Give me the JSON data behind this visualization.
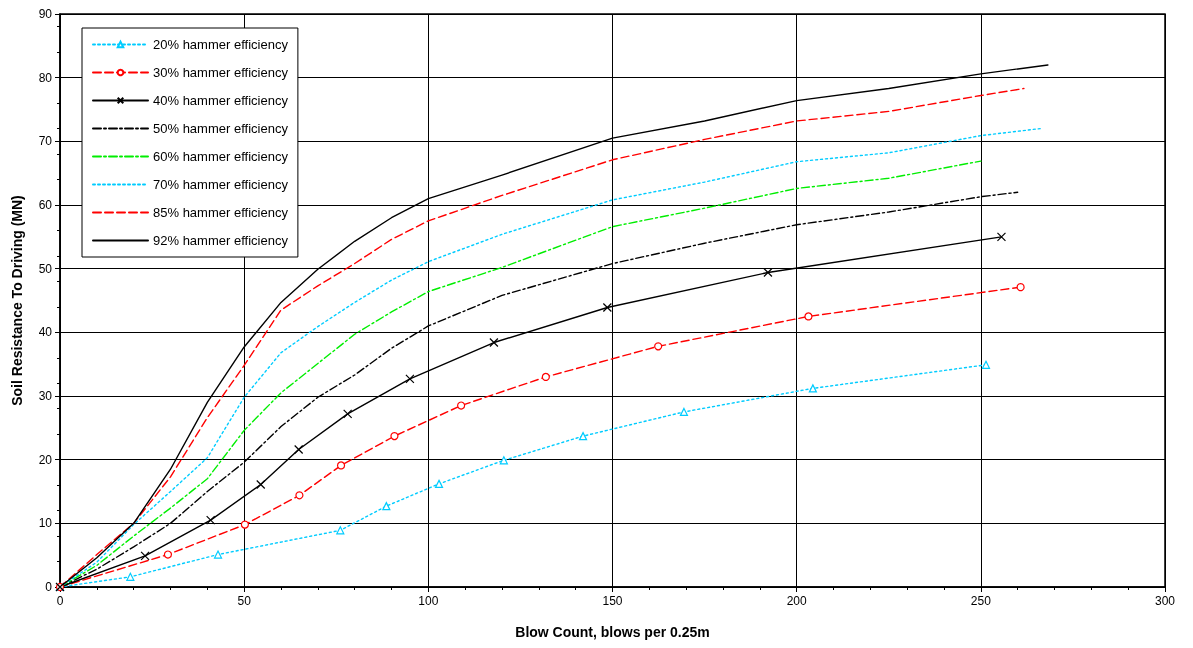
{
  "chart_data": {
    "type": "line",
    "xlabel": "Blow Count, blows per 0.25m",
    "ylabel": "Soil Resistance To Driving (MN)",
    "xlim": [
      0,
      300
    ],
    "xticks": [
      0,
      50,
      100,
      150,
      200,
      250,
      300
    ],
    "ylim": [
      0,
      90
    ],
    "yticks": [
      0,
      10,
      20,
      30,
      40,
      50,
      60,
      70,
      80,
      90
    ],
    "grid": true,
    "legend": "top left",
    "series": [
      {
        "name": "20% hammer efficiency",
        "color": "#00ccff",
        "line_style": "dotted",
        "marker": "triangle",
        "x": [
          0,
          19.1,
          42.9,
          76.1,
          88.6,
          102.9,
          120.5,
          142,
          169.4,
          204.4,
          251.4
        ],
        "values": [
          0,
          1.6,
          5.1,
          8.9,
          12.7,
          16.2,
          19.9,
          23.7,
          27.5,
          31.2,
          34.9
        ]
      },
      {
        "name": "30% hammer efficiency",
        "color": "#ff0000",
        "line_style": "dashed",
        "marker": "circle",
        "x": [
          0,
          29.3,
          50.2,
          65,
          76.3,
          90.8,
          108.9,
          131.9,
          162.4,
          203.2,
          260.8
        ],
        "values": [
          0,
          5.1,
          9.8,
          14.4,
          19.1,
          23.7,
          28.5,
          33,
          37.8,
          42.5,
          47.1
        ]
      },
      {
        "name": "40% hammer efficiency",
        "color": "#000000",
        "line_style": "solid",
        "marker": "cross",
        "x": [
          0,
          23.1,
          40.9,
          54.5,
          64.8,
          78.1,
          95,
          117.8,
          148.6,
          192.2,
          255.6
        ],
        "values": [
          0,
          4.9,
          10.5,
          16.1,
          21.6,
          27.2,
          32.7,
          38.4,
          43.9,
          49.4,
          55
        ]
      },
      {
        "name": "50% hammer efficiency",
        "color": "#000000",
        "line_style": "dashdot",
        "marker": "none",
        "x": [
          0,
          10,
          20,
          30,
          40,
          50,
          60,
          70,
          80,
          90,
          100,
          120,
          150,
          175,
          200,
          225,
          250,
          260
        ],
        "values": [
          0,
          2.8,
          6.3,
          10,
          15,
          19.6,
          25.2,
          29.8,
          33.3,
          37.5,
          41,
          45.8,
          50.8,
          54,
          56.9,
          58.9,
          61.3,
          62
        ]
      },
      {
        "name": "60% hammer efficiency",
        "color": "#00ee00",
        "line_style": "dashdot",
        "marker": "none",
        "x": [
          0,
          10,
          20,
          30,
          40,
          50,
          60,
          70,
          80,
          90,
          100,
          120,
          150,
          175,
          200,
          225,
          250
        ],
        "values": [
          0,
          3.4,
          8,
          12.4,
          17,
          24.6,
          30.5,
          35.1,
          39.7,
          43.2,
          46.4,
          50.2,
          56.6,
          59.5,
          62.6,
          64.2,
          66.9
        ]
      },
      {
        "name": "70% hammer efficiency",
        "color": "#00ccff",
        "line_style": "dotted",
        "marker": "none",
        "x": [
          0,
          10,
          20,
          30,
          40,
          50,
          60,
          70,
          80,
          90,
          100,
          120,
          150,
          175,
          200,
          225,
          250,
          266.1
        ],
        "values": [
          0,
          3.9,
          9.8,
          15,
          20.3,
          29.8,
          36.8,
          40.9,
          44.7,
          48.2,
          51.1,
          55.4,
          60.8,
          63.6,
          66.8,
          68.2,
          70.9,
          72
        ]
      },
      {
        "name": "85% hammer efficiency",
        "color": "#ff0000",
        "line_style": "dashed",
        "marker": "none",
        "x": [
          0,
          10,
          20,
          30,
          40,
          50,
          60,
          70,
          80,
          90,
          100,
          120,
          150,
          175,
          200,
          225,
          250,
          261.7
        ],
        "values": [
          0,
          5.1,
          10,
          17.3,
          26.6,
          34.8,
          43.5,
          47.3,
          50.8,
          54.6,
          57.5,
          61.5,
          67.1,
          70.3,
          73.2,
          74.7,
          77.2,
          78.3
        ]
      },
      {
        "name": "92% hammer efficiency",
        "color": "#000000",
        "line_style": "solid",
        "marker": "none",
        "x": [
          0,
          10,
          20,
          30,
          40,
          50,
          60,
          70,
          80,
          90,
          100,
          120,
          150,
          175,
          200,
          225,
          250,
          268.2
        ],
        "values": [
          0,
          4.6,
          10,
          18.5,
          29,
          37.7,
          44.7,
          49.9,
          54.3,
          58,
          61,
          64.7,
          70.5,
          73.2,
          76.4,
          78.3,
          80.6,
          82
        ]
      }
    ]
  }
}
